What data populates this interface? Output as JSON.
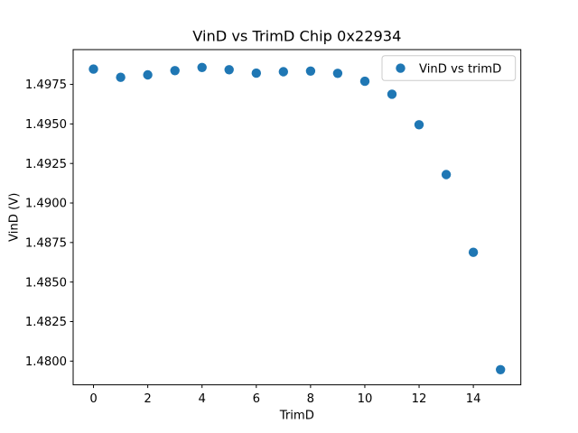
{
  "figure": {
    "background": "#ffffff"
  },
  "chart_data": {
    "type": "scatter",
    "title": "VinD vs TrimD Chip 0x22934",
    "xlabel": "TrimD",
    "ylabel": "VinD (V)",
    "series": [
      {
        "name": "VinD vs trimD",
        "x": [
          0,
          1,
          2,
          3,
          4,
          5,
          6,
          7,
          8,
          9,
          10,
          11,
          12,
          13,
          14,
          15
        ],
        "y": [
          1.49847,
          1.49795,
          1.4981,
          1.49837,
          1.49857,
          1.49843,
          1.49821,
          1.4983,
          1.49834,
          1.4982,
          1.4977,
          1.49688,
          1.49495,
          1.4918,
          1.48688,
          1.47946
        ],
        "color": "#1f77b4",
        "marker": "circle"
      }
    ],
    "xlim": [
      -0.75,
      15.75
    ],
    "ylim": [
      1.4785,
      1.4997
    ],
    "x_ticks": [
      0,
      2,
      4,
      6,
      8,
      10,
      12,
      14
    ],
    "x_tick_labels": [
      "0",
      "2",
      "4",
      "6",
      "8",
      "10",
      "12",
      "14"
    ],
    "y_ticks": [
      1.48,
      1.4825,
      1.485,
      1.4875,
      1.49,
      1.4925,
      1.495,
      1.4975
    ],
    "y_tick_labels": [
      "1.4800",
      "1.4825",
      "1.4850",
      "1.4875",
      "1.4900",
      "1.4925",
      "1.4950",
      "1.4975"
    ],
    "legend": {
      "label": "VinD vs trimD",
      "position": "upper right"
    },
    "grid": false,
    "axis_color": "#000000",
    "text_color": "#000000",
    "legend_border_color": "#cccccc",
    "legend_background": "#ffffff"
  }
}
